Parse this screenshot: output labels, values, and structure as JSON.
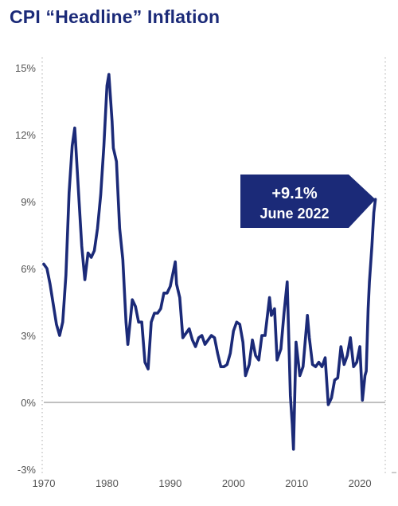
{
  "chart_data": {
    "type": "line",
    "title": "CPI “Headline” Inflation",
    "xlabel": "",
    "ylabel": "",
    "xlim": [
      1970,
      2022.5
    ],
    "ylim": [
      -3,
      15
    ],
    "x_ticks": [
      1970,
      1980,
      1990,
      2000,
      2010,
      2020
    ],
    "y_ticks": [
      15,
      12,
      9,
      6,
      3,
      0,
      -3
    ],
    "y_tick_labels": [
      "15%",
      "12%",
      "9%",
      "6%",
      "3%",
      "0%",
      "-3%"
    ],
    "zero_line": true,
    "grid": false,
    "legend": "none",
    "line_color": "#1b2a78",
    "series": [
      {
        "values": [
          [
            1970.0,
            6.2
          ],
          [
            1970.5,
            6.0
          ],
          [
            1971.0,
            5.3
          ],
          [
            1971.5,
            4.4
          ],
          [
            1972.0,
            3.5
          ],
          [
            1972.5,
            3.0
          ],
          [
            1973.0,
            3.6
          ],
          [
            1973.5,
            5.7
          ],
          [
            1974.0,
            9.4
          ],
          [
            1974.5,
            11.5
          ],
          [
            1974.9,
            12.3
          ],
          [
            1975.5,
            9.4
          ],
          [
            1976.0,
            7.0
          ],
          [
            1976.5,
            5.5
          ],
          [
            1977.0,
            6.7
          ],
          [
            1977.5,
            6.5
          ],
          [
            1978.0,
            6.8
          ],
          [
            1978.5,
            7.8
          ],
          [
            1979.0,
            9.3
          ],
          [
            1979.5,
            11.5
          ],
          [
            1980.0,
            14.2
          ],
          [
            1980.3,
            14.7
          ],
          [
            1980.8,
            12.6
          ],
          [
            1981.0,
            11.4
          ],
          [
            1981.5,
            10.8
          ],
          [
            1982.0,
            7.8
          ],
          [
            1982.5,
            6.4
          ],
          [
            1983.0,
            3.6
          ],
          [
            1983.3,
            2.6
          ],
          [
            1983.8,
            4.0
          ],
          [
            1984.0,
            4.6
          ],
          [
            1984.5,
            4.3
          ],
          [
            1985.0,
            3.6
          ],
          [
            1985.5,
            3.6
          ],
          [
            1986.0,
            1.8
          ],
          [
            1986.5,
            1.5
          ],
          [
            1987.0,
            3.6
          ],
          [
            1987.5,
            4.0
          ],
          [
            1988.0,
            4.0
          ],
          [
            1988.5,
            4.2
          ],
          [
            1989.0,
            4.9
          ],
          [
            1989.5,
            4.9
          ],
          [
            1990.0,
            5.2
          ],
          [
            1990.8,
            6.3
          ],
          [
            1991.0,
            5.3
          ],
          [
            1991.5,
            4.7
          ],
          [
            1992.0,
            2.9
          ],
          [
            1992.5,
            3.1
          ],
          [
            1993.0,
            3.3
          ],
          [
            1993.5,
            2.8
          ],
          [
            1994.0,
            2.5
          ],
          [
            1994.5,
            2.9
          ],
          [
            1995.0,
            3.0
          ],
          [
            1995.5,
            2.6
          ],
          [
            1996.0,
            2.8
          ],
          [
            1996.5,
            3.0
          ],
          [
            1997.0,
            2.9
          ],
          [
            1997.5,
            2.2
          ],
          [
            1998.0,
            1.6
          ],
          [
            1998.5,
            1.6
          ],
          [
            1999.0,
            1.7
          ],
          [
            1999.5,
            2.2
          ],
          [
            2000.0,
            3.2
          ],
          [
            2000.5,
            3.6
          ],
          [
            2001.0,
            3.5
          ],
          [
            2001.5,
            2.7
          ],
          [
            2001.9,
            1.2
          ],
          [
            2002.5,
            1.7
          ],
          [
            2003.0,
            2.8
          ],
          [
            2003.5,
            2.1
          ],
          [
            2004.0,
            1.9
          ],
          [
            2004.5,
            3.0
          ],
          [
            2005.0,
            3.0
          ],
          [
            2005.7,
            4.7
          ],
          [
            2006.0,
            3.9
          ],
          [
            2006.5,
            4.2
          ],
          [
            2006.9,
            1.9
          ],
          [
            2007.5,
            2.4
          ],
          [
            2008.0,
            4.0
          ],
          [
            2008.5,
            5.4
          ],
          [
            2009.0,
            0.3
          ],
          [
            2009.3,
            -1.0
          ],
          [
            2009.5,
            -2.1
          ],
          [
            2009.9,
            2.7
          ],
          [
            2010.5,
            1.2
          ],
          [
            2011.0,
            1.6
          ],
          [
            2011.7,
            3.9
          ],
          [
            2012.0,
            2.9
          ],
          [
            2012.5,
            1.7
          ],
          [
            2013.0,
            1.6
          ],
          [
            2013.5,
            1.8
          ],
          [
            2014.0,
            1.6
          ],
          [
            2014.5,
            2.0
          ],
          [
            2015.0,
            -0.1
          ],
          [
            2015.5,
            0.2
          ],
          [
            2016.0,
            1.0
          ],
          [
            2016.5,
            1.1
          ],
          [
            2017.0,
            2.5
          ],
          [
            2017.5,
            1.7
          ],
          [
            2018.0,
            2.1
          ],
          [
            2018.5,
            2.9
          ],
          [
            2019.0,
            1.6
          ],
          [
            2019.5,
            1.8
          ],
          [
            2020.0,
            2.5
          ],
          [
            2020.4,
            0.1
          ],
          [
            2020.8,
            1.2
          ],
          [
            2021.0,
            1.4
          ],
          [
            2021.3,
            4.2
          ],
          [
            2021.5,
            5.4
          ],
          [
            2021.9,
            7.0
          ],
          [
            2022.2,
            8.5
          ],
          [
            2022.45,
            9.1
          ]
        ]
      }
    ],
    "annotations": [
      {
        "line1": "+9.1%",
        "line2": "June 2022",
        "x": 2022.45,
        "y": 9.1
      }
    ]
  }
}
